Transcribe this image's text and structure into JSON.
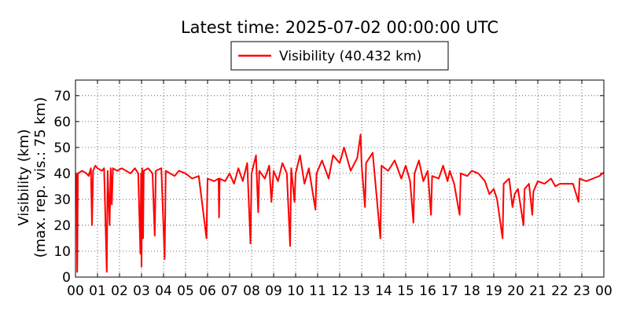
{
  "chart_data": {
    "type": "line",
    "title": "Latest time: 2025-07-02 00:00:00 UTC",
    "ylabel_lines": [
      "Visibility (km)",
      "(max. rep. vis.: 75 km)"
    ],
    "xlabel": "",
    "xlim": [
      0,
      24
    ],
    "ylim": [
      0,
      76
    ],
    "x_tick_values": [
      0,
      1,
      2,
      3,
      4,
      5,
      6,
      7,
      8,
      9,
      10,
      11,
      12,
      13,
      14,
      15,
      16,
      17,
      18,
      19,
      20,
      21,
      22,
      23,
      24
    ],
    "x_tick_labels": [
      "00",
      "01",
      "02",
      "03",
      "04",
      "05",
      "06",
      "07",
      "08",
      "09",
      "10",
      "11",
      "12",
      "13",
      "14",
      "15",
      "16",
      "17",
      "18",
      "19",
      "20",
      "21",
      "22",
      "23",
      "00"
    ],
    "y_ticks": [
      0,
      10,
      20,
      30,
      40,
      50,
      60,
      70
    ],
    "grid": true,
    "legend_position": "top-center",
    "series": [
      {
        "name": "Visibility (40.432 km)",
        "color": "#ff0000",
        "x_unit": "hours UTC",
        "points": [
          [
            0.0,
            40
          ],
          [
            0.05,
            39
          ],
          [
            0.08,
            2
          ],
          [
            0.11,
            40
          ],
          [
            0.3,
            41
          ],
          [
            0.5,
            40
          ],
          [
            0.6,
            39
          ],
          [
            0.7,
            42
          ],
          [
            0.75,
            20
          ],
          [
            0.8,
            41
          ],
          [
            0.9,
            43
          ],
          [
            1.0,
            42
          ],
          [
            1.2,
            41
          ],
          [
            1.3,
            42
          ],
          [
            1.42,
            2
          ],
          [
            1.46,
            41
          ],
          [
            1.55,
            20
          ],
          [
            1.6,
            42
          ],
          [
            1.65,
            28
          ],
          [
            1.7,
            42
          ],
          [
            1.9,
            41
          ],
          [
            2.1,
            42
          ],
          [
            2.3,
            41
          ],
          [
            2.5,
            40
          ],
          [
            2.7,
            42
          ],
          [
            2.85,
            40
          ],
          [
            2.95,
            9
          ],
          [
            2.98,
            40
          ],
          [
            3.0,
            4
          ],
          [
            3.03,
            42
          ],
          [
            3.07,
            15
          ],
          [
            3.1,
            41
          ],
          [
            3.3,
            42
          ],
          [
            3.5,
            40
          ],
          [
            3.6,
            16
          ],
          [
            3.65,
            41
          ],
          [
            3.9,
            42
          ],
          [
            4.05,
            7
          ],
          [
            4.1,
            41
          ],
          [
            4.3,
            40
          ],
          [
            4.5,
            39
          ],
          [
            4.7,
            41
          ],
          [
            5.0,
            40
          ],
          [
            5.3,
            38
          ],
          [
            5.6,
            39
          ],
          [
            5.95,
            15
          ],
          [
            6.0,
            38
          ],
          [
            6.3,
            37
          ],
          [
            6.5,
            38
          ],
          [
            6.52,
            23
          ],
          [
            6.55,
            38
          ],
          [
            6.8,
            37
          ],
          [
            7.0,
            40
          ],
          [
            7.2,
            36
          ],
          [
            7.4,
            42
          ],
          [
            7.6,
            37
          ],
          [
            7.8,
            44
          ],
          [
            7.95,
            13
          ],
          [
            8.0,
            40
          ],
          [
            8.2,
            47
          ],
          [
            8.3,
            25
          ],
          [
            8.35,
            41
          ],
          [
            8.6,
            38
          ],
          [
            8.8,
            43
          ],
          [
            8.9,
            29
          ],
          [
            9.0,
            41
          ],
          [
            9.2,
            37
          ],
          [
            9.4,
            44
          ],
          [
            9.6,
            40
          ],
          [
            9.75,
            12
          ],
          [
            9.8,
            42
          ],
          [
            9.95,
            29
          ],
          [
            10.0,
            40
          ],
          [
            10.2,
            47
          ],
          [
            10.4,
            36
          ],
          [
            10.6,
            42
          ],
          [
            10.9,
            26
          ],
          [
            10.95,
            40
          ],
          [
            11.2,
            45
          ],
          [
            11.5,
            38
          ],
          [
            11.7,
            47
          ],
          [
            12.0,
            44
          ],
          [
            12.2,
            50
          ],
          [
            12.5,
            41
          ],
          [
            12.8,
            46
          ],
          [
            12.95,
            55
          ],
          [
            13.0,
            43
          ],
          [
            13.15,
            27
          ],
          [
            13.2,
            44
          ],
          [
            13.5,
            48
          ],
          [
            13.85,
            15
          ],
          [
            13.9,
            43
          ],
          [
            14.2,
            41
          ],
          [
            14.5,
            45
          ],
          [
            14.8,
            38
          ],
          [
            15.0,
            43
          ],
          [
            15.2,
            37
          ],
          [
            15.35,
            21
          ],
          [
            15.4,
            40
          ],
          [
            15.6,
            45
          ],
          [
            15.8,
            37
          ],
          [
            16.0,
            41
          ],
          [
            16.15,
            24
          ],
          [
            16.2,
            39
          ],
          [
            16.5,
            38
          ],
          [
            16.7,
            43
          ],
          [
            16.9,
            37
          ],
          [
            17.0,
            41
          ],
          [
            17.2,
            36
          ],
          [
            17.45,
            24
          ],
          [
            17.5,
            40
          ],
          [
            17.8,
            39
          ],
          [
            18.0,
            41
          ],
          [
            18.3,
            40
          ],
          [
            18.6,
            37
          ],
          [
            18.8,
            32
          ],
          [
            19.0,
            34
          ],
          [
            19.15,
            30
          ],
          [
            19.4,
            15
          ],
          [
            19.45,
            36
          ],
          [
            19.7,
            38
          ],
          [
            19.85,
            27
          ],
          [
            19.95,
            32
          ],
          [
            20.1,
            34
          ],
          [
            20.35,
            20
          ],
          [
            20.4,
            34
          ],
          [
            20.6,
            36
          ],
          [
            20.75,
            24
          ],
          [
            20.8,
            33
          ],
          [
            21.0,
            37
          ],
          [
            21.3,
            36
          ],
          [
            21.6,
            38
          ],
          [
            21.8,
            35
          ],
          [
            22.0,
            36
          ],
          [
            22.3,
            36
          ],
          [
            22.6,
            36
          ],
          [
            22.85,
            29
          ],
          [
            22.9,
            38
          ],
          [
            23.2,
            37
          ],
          [
            23.5,
            38
          ],
          [
            23.8,
            39
          ],
          [
            24.0,
            40.432
          ]
        ]
      }
    ]
  }
}
